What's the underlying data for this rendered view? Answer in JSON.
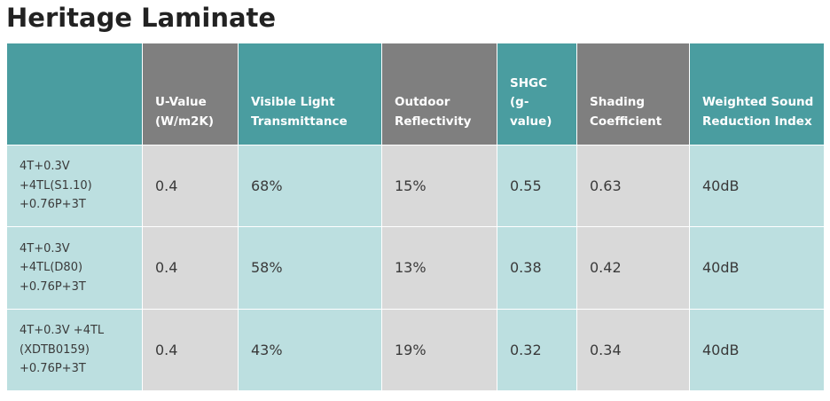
{
  "title": "Heritage Laminate",
  "headers": [
    "",
    "U-Value (W/m2K)",
    "Visible Light Transmittance",
    "Outdoor Reflectivity",
    "SHGC (g-value)",
    "Shading Coefficient",
    "Weighted Sound Reduction Index"
  ],
  "rows": [
    {
      "config": "4T+0.3V +4TL(S1.10) +0.76P+3T",
      "u_value": "0.4",
      "vlt": "68%",
      "reflectivity": "15%",
      "shgc": "0.55",
      "shading": "0.63",
      "sound": "40dB"
    },
    {
      "config": "4T+0.3V +4TL(D80) +0.76P+3T",
      "u_value": "0.4",
      "vlt": "58%",
      "reflectivity": "13%",
      "shgc": "0.38",
      "shading": "0.42",
      "sound": "40dB"
    },
    {
      "config": "4T+0.3V +4TL (XDTB0159) +0.76P+3T",
      "u_value": "0.4",
      "vlt": "43%",
      "reflectivity": "19%",
      "shgc": "0.32",
      "shading": "0.34",
      "sound": "40dB"
    }
  ],
  "colors": {
    "header_teal": "#4a9da0",
    "header_gray": "#7f7f7f",
    "cell_teal": "#bcdfe0",
    "cell_gray": "#d9d9d9"
  }
}
